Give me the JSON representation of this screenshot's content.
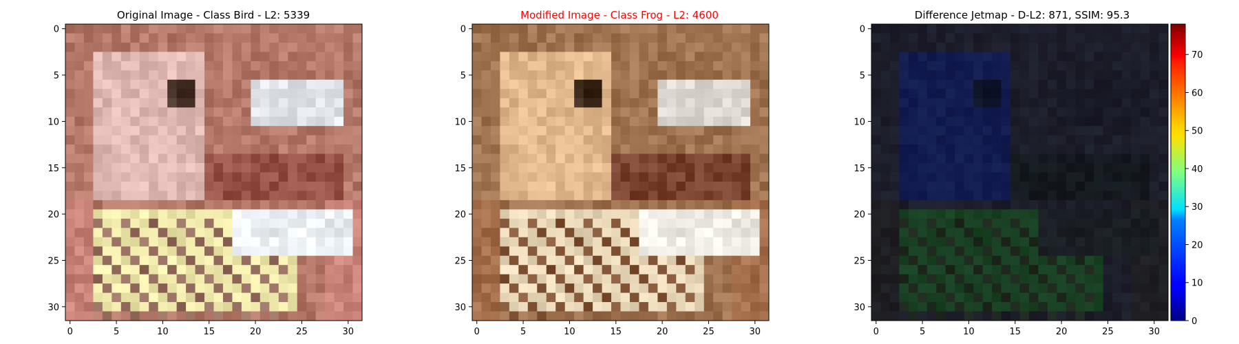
{
  "chart_data": [
    {
      "type": "heatmap",
      "title": "Original Image - Class Bird - L2: 5339",
      "title_color": "#000000",
      "rows": 32,
      "cols": 32,
      "xlim": [
        -0.5,
        31.5
      ],
      "ylim": [
        31.5,
        -0.5
      ],
      "xticks": [
        0,
        5,
        10,
        15,
        20,
        25,
        30
      ],
      "yticks": [
        0,
        5,
        10,
        15,
        20,
        25,
        30
      ],
      "palette": "original"
    },
    {
      "type": "heatmap",
      "title": "Modified Image - Class Frog - L2: 4600",
      "title_color": "#ff0000",
      "rows": 32,
      "cols": 32,
      "xlim": [
        -0.5,
        31.5
      ],
      "ylim": [
        31.5,
        -0.5
      ],
      "xticks": [
        0,
        5,
        10,
        15,
        20,
        25,
        30
      ],
      "yticks": [
        0,
        5,
        10,
        15,
        20,
        25,
        30
      ],
      "palette": "modified"
    },
    {
      "type": "heatmap",
      "title": "Difference Jetmap - D-L2: 871, SSIM: 95.3",
      "title_color": "#000000",
      "rows": 32,
      "cols": 32,
      "xlim": [
        -0.5,
        31.5
      ],
      "ylim": [
        31.5,
        -0.5
      ],
      "xticks": [
        0,
        5,
        10,
        15,
        20,
        25,
        30
      ],
      "yticks": [
        0,
        5,
        10,
        15,
        20,
        25,
        30
      ],
      "palette": "difference",
      "colorbar": {
        "colormap": "jet",
        "min": 0,
        "max": 78,
        "ticks": [
          0,
          10,
          20,
          30,
          40,
          50,
          60,
          70
        ]
      }
    }
  ]
}
